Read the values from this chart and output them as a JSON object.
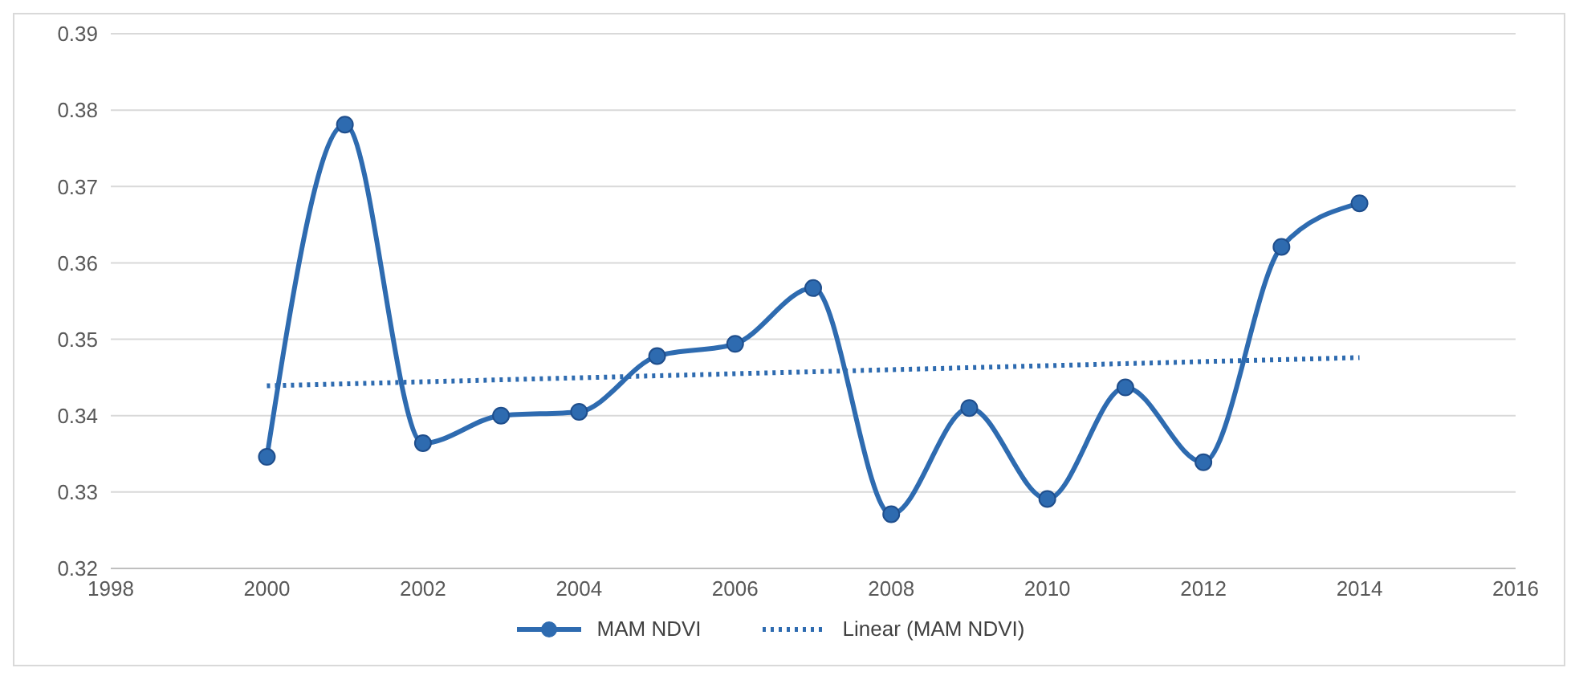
{
  "chart_data": {
    "type": "line",
    "x": [
      2000,
      2001,
      2002,
      2003,
      2004,
      2005,
      2006,
      2007,
      2008,
      2009,
      2010,
      2011,
      2012,
      2013,
      2014
    ],
    "series": [
      {
        "name": "MAM NDVI",
        "color": "#2e6bb0",
        "marker": "circle",
        "line_style": "solid",
        "values": [
          0.3346,
          0.3781,
          0.3364,
          0.34,
          0.3405,
          0.3478,
          0.3494,
          0.3567,
          0.3271,
          0.341,
          0.3291,
          0.3437,
          0.3339,
          0.3621,
          0.3678
        ]
      },
      {
        "name": "Linear (MAM NDVI)",
        "color": "#2e6bb0",
        "marker": "none",
        "line_style": "dotted",
        "x": [
          2000,
          2014
        ],
        "values": [
          0.3439,
          0.3476
        ]
      }
    ],
    "xlim": [
      1998,
      2016
    ],
    "xticks": [
      1998,
      2000,
      2002,
      2004,
      2006,
      2008,
      2010,
      2012,
      2014,
      2016
    ],
    "ylim": [
      0.32,
      0.39
    ],
    "yticks": [
      0.32,
      0.33,
      0.34,
      0.35,
      0.36,
      0.37,
      0.38,
      0.39
    ],
    "grid": "y",
    "legend": "bottom"
  }
}
